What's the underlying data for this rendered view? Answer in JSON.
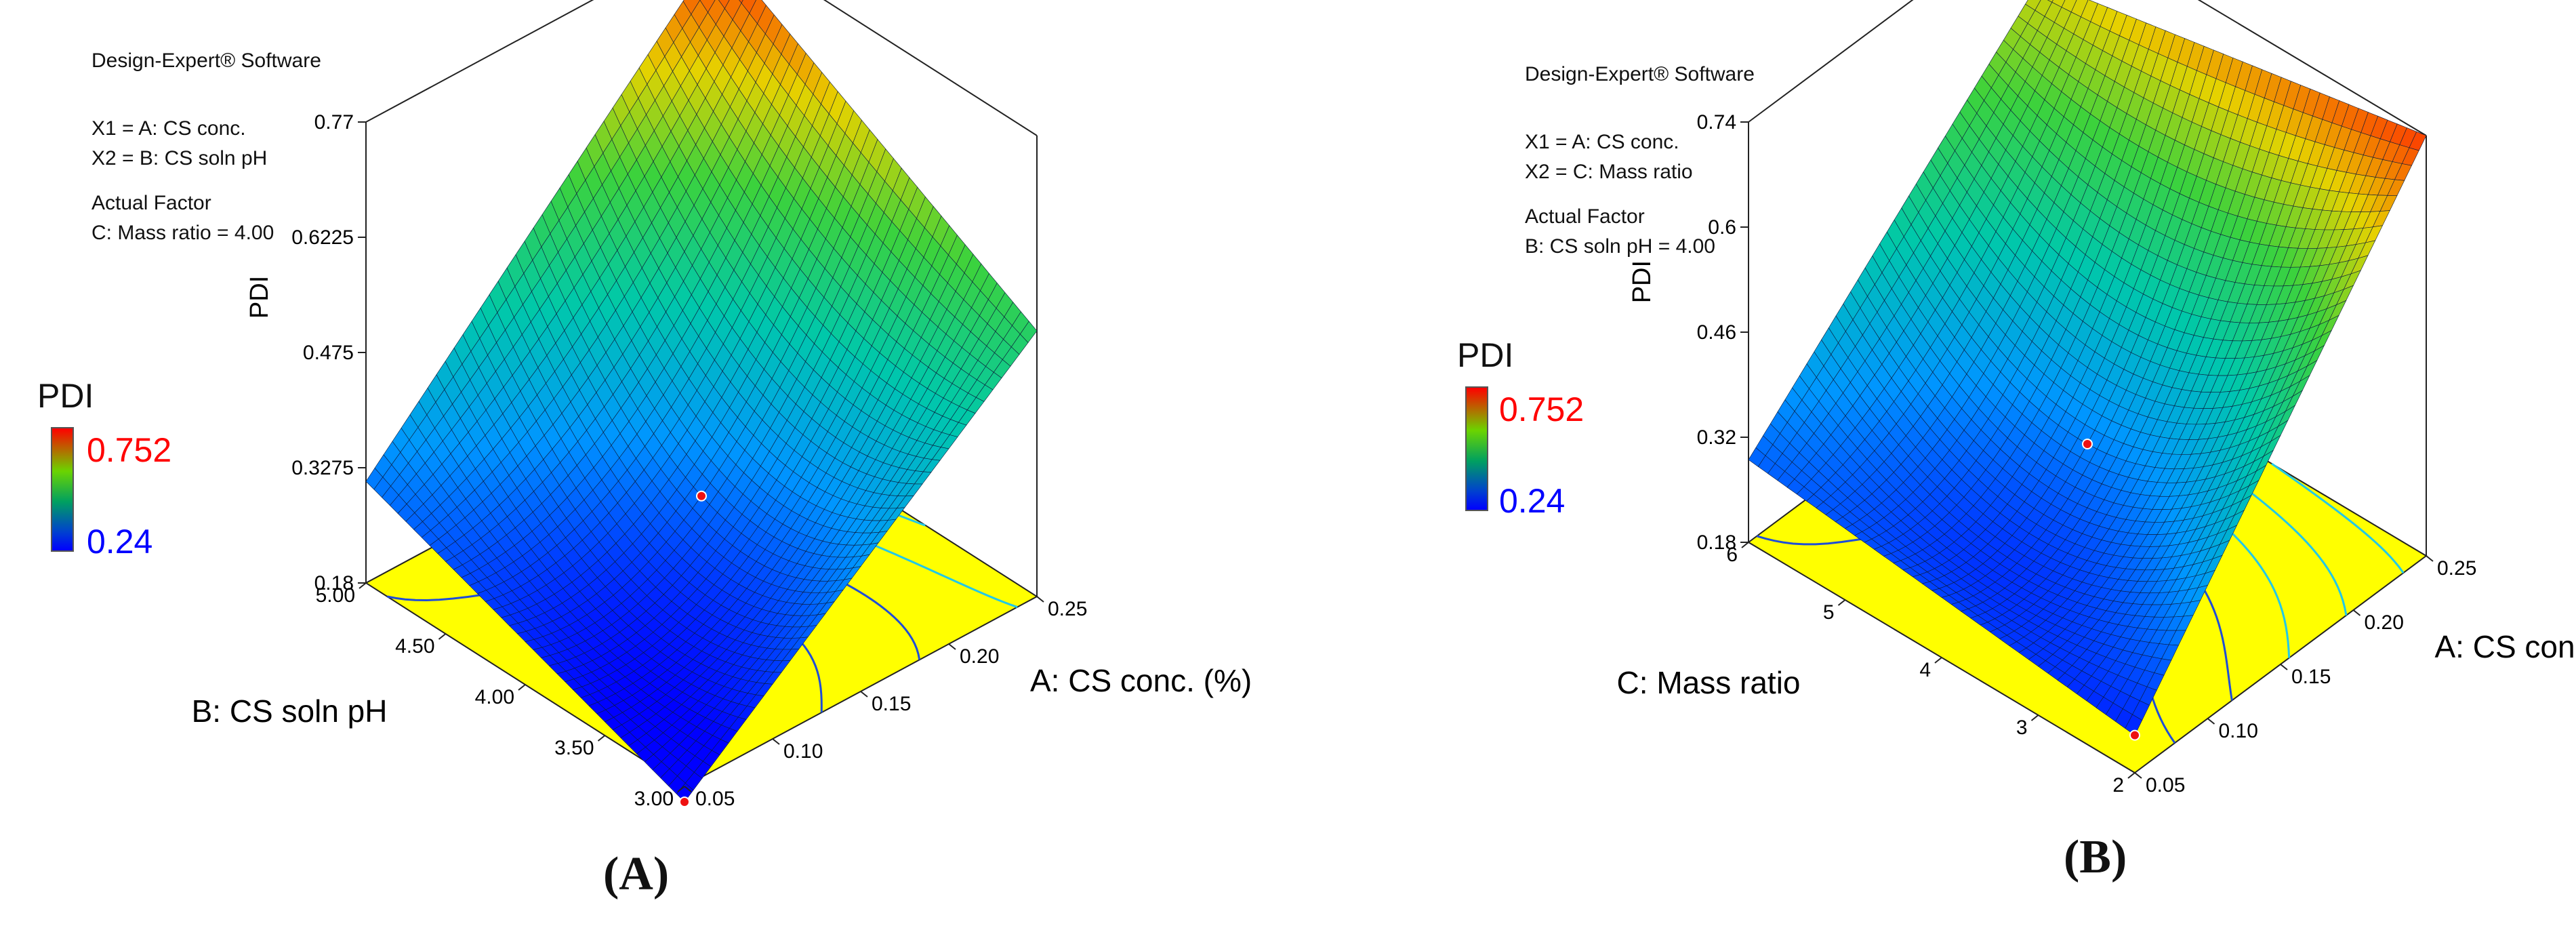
{
  "chart_data": [
    {
      "type": "surface",
      "header": "Design-Expert® Software",
      "x1_label": "X1 = A: CS conc.",
      "x2_label": "X2 = B: CS soln pH",
      "actual_factor_title": "Actual Factor",
      "actual_factor_value": "C: Mass ratio = 4.00",
      "zlabel": "PDI",
      "legend": {
        "title": "PDI",
        "max": "0.752",
        "min": "0.24"
      },
      "xlabel": "A: CS conc. (%)",
      "ylabel": "B: CS soln pH",
      "x_ticks": [
        "0.05",
        "0.10",
        "0.15",
        "0.20",
        "0.25"
      ],
      "y_ticks": [
        "3.00",
        "3.50",
        "4.00",
        "4.50",
        "5.00"
      ],
      "z_ticks": [
        "0.18",
        "0.3275",
        "0.475",
        "0.6225",
        "0.77"
      ],
      "xlim": [
        0.05,
        0.25
      ],
      "ylim": [
        3.0,
        5.0
      ],
      "zlim": [
        0.18,
        0.77
      ],
      "corner_values": {
        "low_x_low_y": 0.16,
        "high_x_low_y": 0.52,
        "low_x_high_y": 0.31,
        "high_x_high_y": 0.75
      },
      "center_value": 0.3,
      "caption": "(A)"
    },
    {
      "type": "surface",
      "header": "Design-Expert® Software",
      "x1_label": "X1 = A: CS conc.",
      "x2_label": "X2 = C: Mass ratio",
      "actual_factor_title": "Actual Factor",
      "actual_factor_value": "B: CS soln pH = 4.00",
      "zlabel": "PDI",
      "legend": {
        "title": "PDI",
        "max": "0.752",
        "min": "0.24"
      },
      "xlabel": "A: CS conc. (%)",
      "ylabel": "C: Mass ratio",
      "x_ticks": [
        "0.05",
        "0.10",
        "0.15",
        "0.20",
        "0.25"
      ],
      "y_ticks": [
        "2",
        "3",
        "4",
        "5",
        "6"
      ],
      "z_ticks": [
        "0.18",
        "0.32",
        "0.46",
        "0.6",
        "0.74"
      ],
      "xlim": [
        0.05,
        0.25
      ],
      "ylim": [
        2,
        6
      ],
      "zlim": [
        0.18,
        0.74
      ],
      "corner_values": {
        "low_x_low_y": 0.23,
        "high_x_low_y": 0.74,
        "low_x_high_y": 0.29,
        "high_x_high_y": 0.64
      },
      "center_value": 0.32,
      "caption": "(B)"
    }
  ]
}
